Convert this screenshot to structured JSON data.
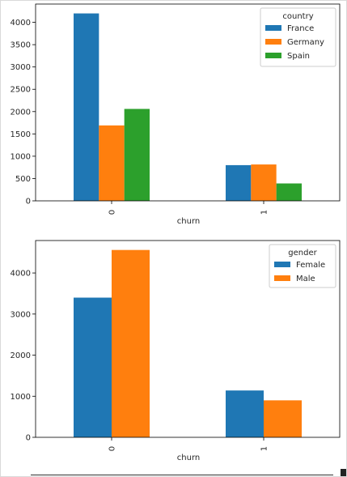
{
  "chart_data": [
    {
      "type": "bar",
      "categories": [
        "0",
        "1"
      ],
      "series": [
        {
          "name": "France",
          "values": [
            4200,
            800
          ],
          "color": "#1f77b4"
        },
        {
          "name": "Germany",
          "values": [
            1690,
            815
          ],
          "color": "#ff7f0e"
        },
        {
          "name": "Spain",
          "values": [
            2060,
            390
          ],
          "color": "#2ca02c"
        }
      ],
      "xlabel": "churn",
      "ylabel": "",
      "ylim": [
        0,
        4410
      ],
      "yticks": [
        0,
        500,
        1000,
        1500,
        2000,
        2500,
        3000,
        3500,
        4000
      ],
      "legend_title": "country",
      "legend_position": "top-right",
      "grid": false
    },
    {
      "type": "bar",
      "categories": [
        "0",
        "1"
      ],
      "series": [
        {
          "name": "Female",
          "values": [
            3400,
            1140
          ],
          "color": "#1f77b4"
        },
        {
          "name": "Male",
          "values": [
            4560,
            900
          ],
          "color": "#ff7f0e"
        }
      ],
      "xlabel": "churn",
      "ylabel": "",
      "ylim": [
        0,
        4790
      ],
      "yticks": [
        0,
        1000,
        2000,
        3000,
        4000
      ],
      "legend_title": "gender",
      "legend_position": "top-right",
      "grid": false
    }
  ]
}
